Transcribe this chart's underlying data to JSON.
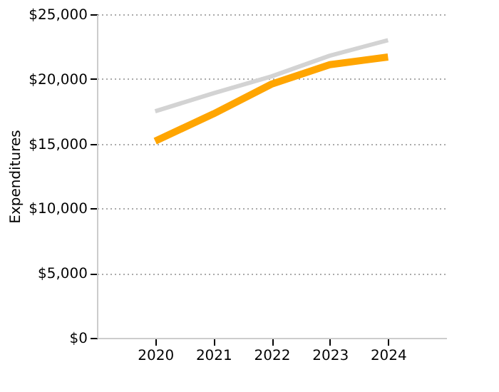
{
  "chart_data": {
    "type": "line",
    "ylabel": "Expenditures",
    "categories": [
      "2020",
      "2021",
      "2022",
      "2023",
      "2024"
    ],
    "series": [
      {
        "color": "#d3d3d3",
        "values": [
          17500,
          18900,
          20200,
          21800,
          23000
        ]
      },
      {
        "color": "#ffa500",
        "values": [
          15200,
          17300,
          19600,
          21100,
          21700
        ]
      }
    ],
    "ylim": [
      0,
      25000
    ],
    "yticks": [
      {
        "value": 0,
        "label": "$0"
      },
      {
        "value": 5000,
        "label": "$5,000"
      },
      {
        "value": 10000,
        "label": "$10,000"
      },
      {
        "value": 15000,
        "label": "$15,000"
      },
      {
        "value": 20000,
        "label": "$20,000"
      },
      {
        "value": 25000,
        "label": "$25,000"
      }
    ],
    "grid": "y",
    "legend": false,
    "marker": "none",
    "line_style": "solid"
  }
}
